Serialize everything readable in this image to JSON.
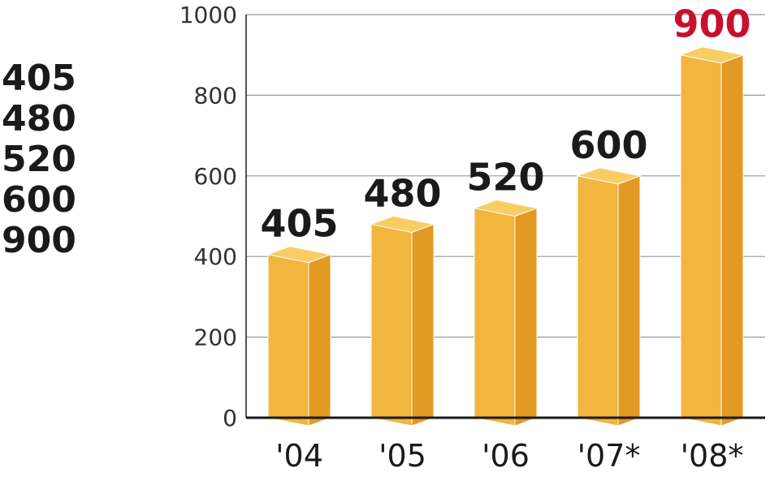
{
  "chart_data": {
    "type": "bar",
    "categories": [
      "'04",
      "'05",
      "'06",
      "'07*",
      "'08*"
    ],
    "values": [
      405,
      480,
      520,
      600,
      900
    ],
    "value_labels": [
      "405",
      "480",
      "520",
      "600",
      "900"
    ],
    "ylim": [
      0,
      1000
    ],
    "yticks": [
      0,
      200,
      400,
      600,
      800,
      1000
    ],
    "ytick_labels": [
      "0",
      "200",
      "400",
      "600",
      "800",
      "1000"
    ],
    "grid": true,
    "title": "",
    "xlabel": "",
    "ylabel": "",
    "colors": {
      "bar_front": "#f2b53d",
      "bar_side": "#e39a22",
      "bar_top": "#f8cd63",
      "label_default": "#1a1a1a",
      "label_highlight": "#c8102e",
      "gridline": "#999999",
      "axis": "#1a1a1a",
      "tick_text": "#333333"
    },
    "highlight_index": 4
  },
  "side_values": [
    "405",
    "480",
    "520",
    "600",
    "900"
  ]
}
